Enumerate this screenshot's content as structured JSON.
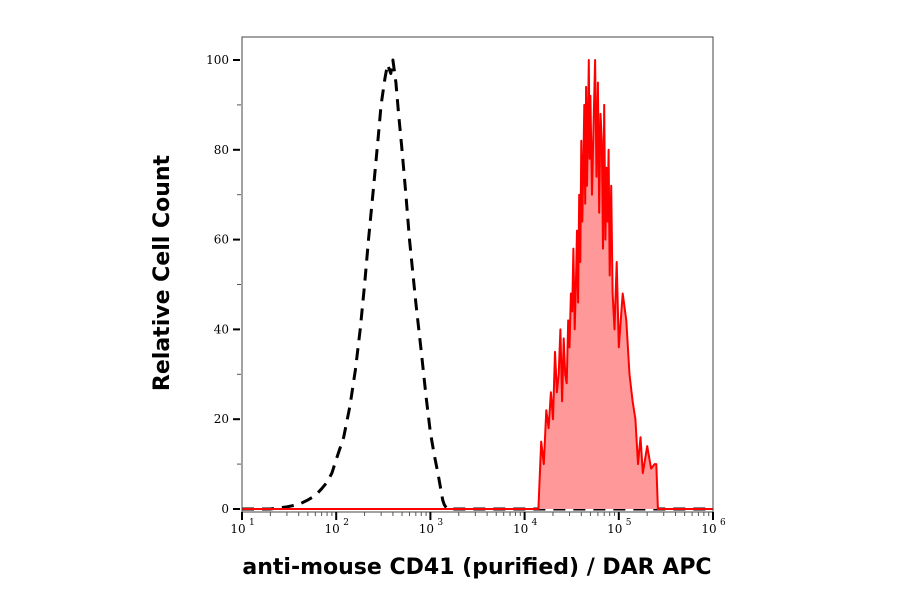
{
  "chart_data": {
    "type": "area",
    "title": "",
    "xlabel": "anti-mouse CD41 (purified) / DAR APC",
    "ylabel": "Relative Cell Count",
    "x_scale": "log",
    "xlim": [
      10,
      1000000
    ],
    "ylim": [
      0,
      100
    ],
    "grid": false,
    "x_ticks": [
      {
        "base": "10",
        "exp": "1",
        "value": 10
      },
      {
        "base": "10",
        "exp": "2",
        "value": 100
      },
      {
        "base": "10",
        "exp": "3",
        "value": 1000
      },
      {
        "base": "10",
        "exp": "4",
        "value": 10000
      },
      {
        "base": "10",
        "exp": "5",
        "value": 100000
      },
      {
        "base": "10",
        "exp": "6",
        "value": 1000000
      }
    ],
    "y_ticks": [
      {
        "label": "0",
        "value": 0
      },
      {
        "label": "20",
        "value": 20
      },
      {
        "label": "40",
        "value": 40
      },
      {
        "label": "60",
        "value": 60
      },
      {
        "label": "80",
        "value": 80
      },
      {
        "label": "100",
        "value": 100
      }
    ],
    "series": [
      {
        "style": "dashed-black",
        "color": "#000000",
        "x": [
          10,
          20,
          30,
          40,
          50,
          60,
          70,
          80,
          90,
          100,
          120,
          140,
          160,
          180,
          200,
          220,
          250,
          280,
          300,
          330,
          350,
          380,
          400,
          430,
          460,
          500,
          550,
          600,
          700,
          800,
          900,
          1000,
          1100,
          1200,
          1300,
          1350,
          1400,
          1500,
          2000,
          1000000
        ],
        "y": [
          0,
          0,
          0.5,
          1,
          2,
          3,
          4.5,
          6,
          8,
          11,
          16,
          23,
          31,
          40,
          50,
          60,
          72,
          83,
          90,
          96,
          99,
          97,
          100,
          95,
          88,
          80,
          70,
          60,
          46,
          35,
          25,
          17,
          12,
          8,
          4,
          2,
          1,
          0,
          0,
          0
        ]
      },
      {
        "style": "filled-red",
        "color": "#ff0000",
        "fill": "#ff9999",
        "x": [
          10,
          14000,
          15000,
          16000,
          17000,
          18000,
          19000,
          20000,
          21000,
          22000,
          23000,
          24000,
          25000,
          26000,
          27000,
          28000,
          29000,
          30000,
          31000,
          32000,
          33000,
          34000,
          35000,
          36000,
          37000,
          38000,
          39000,
          40000,
          41000,
          42000,
          43000,
          44000,
          45000,
          46000,
          47000,
          48000,
          49000,
          50000,
          52000,
          54000,
          56000,
          58000,
          60000,
          62000,
          64000,
          66000,
          68000,
          70000,
          72000,
          74000,
          76000,
          78000,
          80000,
          83000,
          86000,
          90000,
          95000,
          100000,
          110000,
          120000,
          130000,
          140000,
          150000,
          160000,
          170000,
          180000,
          200000,
          220000,
          240000,
          250000,
          260000,
          280000,
          1000000
        ],
        "y": [
          0,
          0,
          15,
          10,
          22,
          18,
          26,
          20,
          35,
          26,
          30,
          40,
          24,
          38,
          30,
          28,
          42,
          36,
          48,
          44,
          58,
          40,
          50,
          62,
          46,
          70,
          55,
          82,
          64,
          76,
          90,
          68,
          94,
          72,
          84,
          100,
          78,
          92,
          70,
          86,
          100,
          74,
          95,
          66,
          88,
          82,
          58,
          90,
          60,
          76,
          64,
          80,
          52,
          72,
          48,
          40,
          55,
          36,
          48,
          42,
          30,
          24,
          20,
          10,
          16,
          8,
          14,
          9,
          10,
          10,
          0,
          0,
          0
        ]
      }
    ]
  }
}
